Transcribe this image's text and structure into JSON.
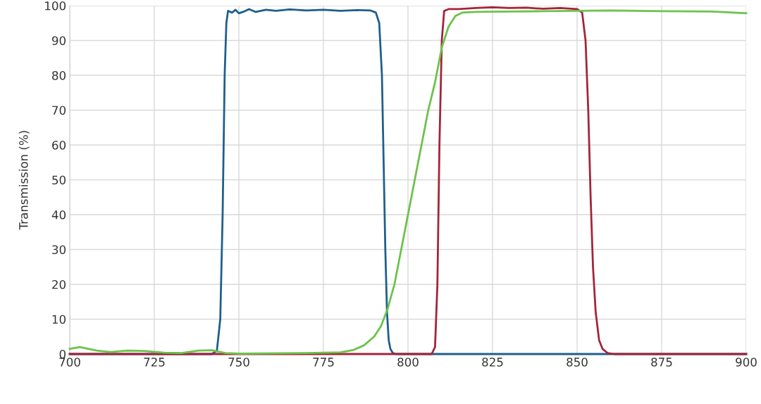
{
  "chart_data": {
    "type": "line",
    "ylabel": "Transmission (%)",
    "xlim": [
      700,
      900
    ],
    "xticks": [
      700,
      725,
      750,
      775,
      800,
      825,
      850,
      875,
      900
    ],
    "ylim": [
      0,
      100
    ],
    "yticks": [
      0,
      10,
      20,
      30,
      40,
      50,
      60,
      70,
      80,
      90,
      100
    ],
    "grid": true,
    "marker": "none",
    "line_style": "solid",
    "series": [
      {
        "color": "#1f5f8b",
        "x": [
          700,
          742,
          743.5,
          744.5,
          745.2,
          745.8,
          746.3,
          746.8,
          748,
          749,
          750,
          751.5,
          753,
          755,
          758,
          761,
          765,
          770,
          775,
          780,
          785,
          789,
          790.5,
          791.5,
          792.3,
          792.8,
          793.3,
          793.8,
          794.3,
          794.8,
          795.5,
          796.5,
          900
        ],
        "values": [
          0,
          0,
          1,
          10,
          40,
          80,
          95,
          98.5,
          98,
          98.8,
          97.8,
          98.3,
          99,
          98.2,
          98.8,
          98.5,
          98.9,
          98.6,
          98.8,
          98.5,
          98.7,
          98.6,
          98,
          95,
          80,
          55,
          30,
          12,
          4,
          1.5,
          0.3,
          0,
          0
        ]
      },
      {
        "color": "#a3253a",
        "x": [
          700,
          807,
          808,
          808.7,
          809.3,
          810,
          810.7,
          812,
          815,
          820,
          825,
          830,
          835,
          840,
          845,
          850,
          851.5,
          852.5,
          853.3,
          854,
          854.7,
          855.5,
          856.5,
          857.5,
          859,
          861,
          900
        ],
        "values": [
          0,
          0,
          2,
          20,
          60,
          90,
          98.5,
          99,
          99,
          99.3,
          99.5,
          99.3,
          99.4,
          99.1,
          99.3,
          99,
          98,
          90,
          70,
          45,
          25,
          12,
          4,
          1.5,
          0.3,
          0,
          0
        ]
      },
      {
        "color": "#6cc24a",
        "x": [
          700,
          703,
          708,
          712,
          717,
          722,
          728,
          733,
          738,
          742,
          746,
          750,
          770,
          780,
          784,
          787,
          790,
          792,
          794,
          796,
          798,
          800,
          803,
          806,
          808,
          810,
          812,
          814,
          816,
          820,
          830,
          840,
          850,
          860,
          875,
          890,
          900
        ],
        "values": [
          1.5,
          2,
          1,
          0.6,
          1,
          0.9,
          0.4,
          0.3,
          1,
          1.1,
          0.3,
          0.1,
          0.3,
          0.5,
          1.2,
          2.5,
          5,
          8,
          13,
          20,
          30,
          40,
          55,
          70,
          78,
          88,
          94,
          97,
          98,
          98.2,
          98.3,
          98.4,
          98.5,
          98.6,
          98.4,
          98.3,
          97.8
        ]
      }
    ]
  }
}
